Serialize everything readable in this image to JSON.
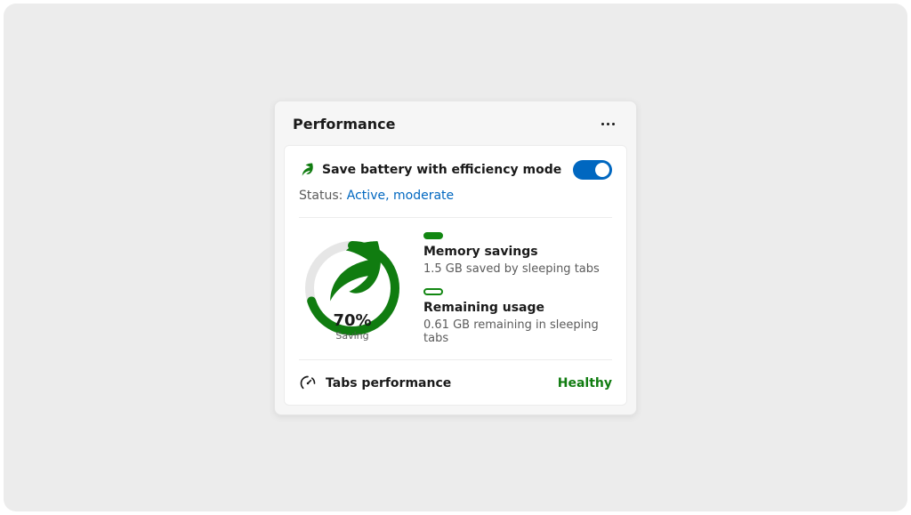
{
  "card": {
    "title": "Performance"
  },
  "efficiency": {
    "label": "Save battery with efficiency mode",
    "toggle_on": true,
    "status_prefix": "Status: ",
    "status_value": "Active, moderate"
  },
  "gauge": {
    "percent_value": 70,
    "percent_label": "70%",
    "sub_label": "Saving",
    "ring_track_color": "#e6e6e6",
    "ring_fill_color": "#107c10",
    "ring_stroke_width": 10,
    "leaf_color": "#107c10"
  },
  "legend": {
    "memory": {
      "pill_fill_color": "#128712",
      "pill_border_color": "#128712",
      "title": "Memory savings",
      "desc": "1.5 GB saved by sleeping tabs"
    },
    "remaining": {
      "pill_fill_color": "#ffffff",
      "pill_border_color": "#128712",
      "title": "Remaining usage",
      "desc": "0.61 GB remaining in sleeping tabs"
    }
  },
  "tabs": {
    "label": "Tabs performance",
    "status_text": "Healthy",
    "status_color": "#107c10"
  },
  "colors": {
    "toggle_on_bg": "#0067c0",
    "link_color": "#0067c0",
    "frame_bg": "#ececec",
    "card_bg": "#f6f6f6",
    "inner_bg": "#ffffff",
    "divider": "#ececec",
    "text_primary": "#1a1a1a",
    "text_secondary": "#5b5b5b"
  }
}
